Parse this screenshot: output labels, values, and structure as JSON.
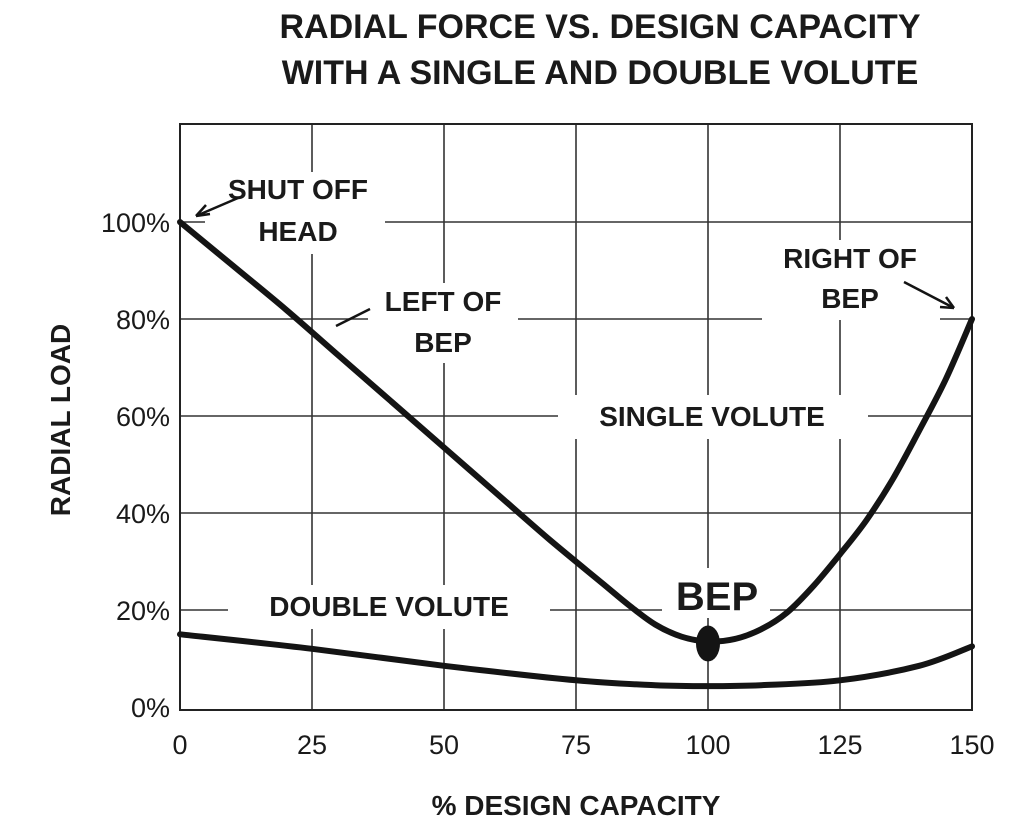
{
  "chart_data": {
    "type": "line",
    "title": [
      "RADIAL FORCE VS. DESIGN CAPACITY",
      "WITH A SINGLE AND DOUBLE VOLUTE"
    ],
    "xlabel": "% DESIGN CAPACITY",
    "ylabel": "RADIAL LOAD",
    "xlim": [
      0,
      150
    ],
    "ylim": [
      0,
      120
    ],
    "x_ticks": [
      0,
      25,
      50,
      75,
      100,
      125,
      150
    ],
    "x_tick_labels": [
      "0",
      "25",
      "50",
      "75",
      "100",
      "125",
      "150"
    ],
    "y_ticks": [
      0,
      20,
      40,
      60,
      80,
      100
    ],
    "y_tick_labels": [
      "0%",
      "20%",
      "40%",
      "60%",
      "80%",
      "100%"
    ],
    "grid": true,
    "series": [
      {
        "name": "SINGLE VOLUTE",
        "x": [
          0,
          10,
          20,
          30,
          40,
          50,
          60,
          70,
          80,
          85,
          90,
          95,
          100,
          105,
          110,
          115,
          120,
          125,
          130,
          135,
          140,
          145,
          150
        ],
        "y": [
          100,
          91,
          82,
          72.5,
          63,
          53.5,
          44,
          34.5,
          25.5,
          21,
          17,
          14.5,
          13.5,
          14,
          16,
          19.5,
          25,
          31.5,
          38.5,
          47,
          57,
          67.5,
          80
        ]
      },
      {
        "name": "DOUBLE VOLUTE",
        "x": [
          0,
          25,
          50,
          75,
          90,
          100,
          110,
          125,
          140,
          150
        ],
        "y": [
          15,
          12,
          8.5,
          5.5,
          4.5,
          4.3,
          4.5,
          5.5,
          8.5,
          12.5
        ]
      }
    ],
    "highlight_point": {
      "label": "BEP",
      "x": 100,
      "y": 13.5
    },
    "annotations": [
      {
        "lines": [
          "SHUT OFF",
          "HEAD"
        ]
      },
      {
        "lines": [
          "LEFT OF",
          "BEP"
        ]
      },
      {
        "lines": [
          "RIGHT OF",
          "BEP"
        ]
      }
    ]
  }
}
